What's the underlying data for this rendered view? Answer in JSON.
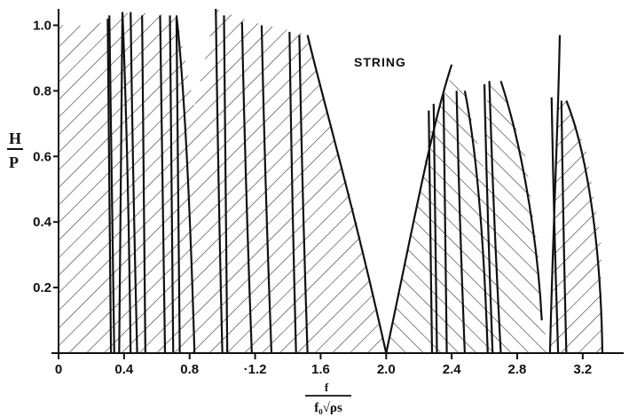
{
  "chart_data": {
    "type": "area",
    "title": "",
    "annotation": "STRING",
    "ylabel_num": "H",
    "ylabel_den": "P",
    "xlabel_num": "f",
    "xlabel_den": "f₀√ρs",
    "xlim": [
      0,
      3.45
    ],
    "ylim": [
      0,
      1.05
    ],
    "grid": false,
    "legend": "none",
    "x_ticks": [
      {
        "v": 0,
        "label": "0"
      },
      {
        "v": 0.4,
        "label": "0.4"
      },
      {
        "v": 0.8,
        "label": "0.8"
      },
      {
        "v": 1.2,
        "label": "·1.2"
      },
      {
        "v": 1.6,
        "label": "1.6"
      },
      {
        "v": 2.0,
        "label": "2.0"
      },
      {
        "v": 2.4,
        "label": "2.4"
      },
      {
        "v": 2.8,
        "label": "2.8"
      },
      {
        "v": 3.2,
        "label": "3.2"
      }
    ],
    "y_ticks": [
      {
        "v": 0.2,
        "label": "0.2"
      },
      {
        "v": 0.4,
        "label": "0.4"
      },
      {
        "v": 0.6,
        "label": "0.6"
      },
      {
        "v": 0.8,
        "label": "0.8"
      },
      {
        "v": 1.0,
        "label": "1.0"
      }
    ],
    "boundaries": [
      {
        "x0": 0.32,
        "x1": 0.3,
        "top": 1.02
      },
      {
        "x0": 0.34,
        "x1": 0.31,
        "top": 1.03
      },
      {
        "x0": 0.37,
        "x1": 0.39,
        "top": 1.04
      },
      {
        "x0": 0.48,
        "x1": 0.44,
        "top": 1.04
      },
      {
        "x0": 0.53,
        "x1": 0.51,
        "top": 1.03
      },
      {
        "x0": 0.65,
        "x1": 0.62,
        "top": 1.03
      },
      {
        "x0": 0.7,
        "x1": 0.68,
        "top": 1.03
      },
      {
        "x0": 0.74,
        "x1": 0.72,
        "top": 1.02
      },
      {
        "x0": 1.0,
        "x1": 0.96,
        "top": 1.05
      },
      {
        "x0": 1.03,
        "x1": 1.01,
        "top": 1.03
      },
      {
        "x0": 1.18,
        "x1": 1.12,
        "top": 1.01
      },
      {
        "x0": 1.3,
        "x1": 1.24,
        "top": 1.0
      },
      {
        "x0": 1.45,
        "x1": 1.41,
        "top": 0.98
      },
      {
        "x0": 1.52,
        "x1": 1.47,
        "top": 0.97
      },
      {
        "x0": 2.28,
        "x1": 2.26,
        "top": 0.74
      },
      {
        "x0": 2.31,
        "x1": 2.29,
        "top": 0.76
      },
      {
        "x0": 2.37,
        "x1": 2.35,
        "top": 0.79
      },
      {
        "x0": 2.48,
        "x1": 2.43,
        "top": 0.8
      },
      {
        "x0": 2.65,
        "x1": 2.6,
        "top": 0.82
      },
      {
        "x0": 2.7,
        "x1": 2.63,
        "top": 0.83
      },
      {
        "x0": 3.05,
        "x1": 3.01,
        "top": 0.78
      },
      {
        "x0": 3.1,
        "x1": 3.07,
        "top": 0.77
      }
    ],
    "outer_curves": [
      {
        "points": [
          [
            0.39,
            1.04
          ],
          [
            0.41,
            0.8
          ],
          [
            0.43,
            0.4
          ],
          [
            0.44,
            0.0
          ]
        ]
      },
      {
        "points": [
          [
            0.72,
            1.03
          ],
          [
            0.76,
            0.85
          ],
          [
            0.8,
            0.5
          ],
          [
            0.83,
            0.0
          ]
        ]
      },
      {
        "points": [
          [
            1.52,
            0.97
          ],
          [
            1.6,
            0.8
          ],
          [
            1.8,
            0.45
          ],
          [
            2.0,
            0.0
          ]
        ]
      },
      {
        "points": [
          [
            2.0,
            0.0
          ],
          [
            2.15,
            0.35
          ],
          [
            2.27,
            0.68
          ],
          [
            2.4,
            0.88
          ]
        ]
      },
      {
        "points": [
          [
            2.48,
            0.8
          ],
          [
            2.56,
            0.6
          ],
          [
            2.6,
            0.3
          ],
          [
            2.62,
            0.0
          ]
        ]
      },
      {
        "points": [
          [
            2.7,
            0.83
          ],
          [
            2.85,
            0.6
          ],
          [
            2.93,
            0.3
          ],
          [
            2.95,
            0.1
          ]
        ]
      },
      {
        "points": [
          [
            3.06,
            0.97
          ],
          [
            3.05,
            0.7
          ],
          [
            3.02,
            0.4
          ],
          [
            3.0,
            0.0
          ]
        ]
      },
      {
        "points": [
          [
            3.1,
            0.77
          ],
          [
            3.22,
            0.62
          ],
          [
            3.31,
            0.35
          ],
          [
            3.32,
            0.0
          ]
        ]
      }
    ],
    "hatched_regions": [
      {
        "upper": [
          [
            0.0,
            1.0
          ],
          [
            0.1,
            1.0
          ],
          [
            0.22,
            1.0
          ],
          [
            0.32,
            1.02
          ],
          [
            0.44,
            1.04
          ],
          [
            0.72,
            1.03
          ],
          [
            0.83,
            0.75
          ],
          [
            0.96,
            1.05
          ],
          [
            1.18,
            1.01
          ],
          [
            1.45,
            0.98
          ],
          [
            1.52,
            0.97
          ],
          [
            1.6,
            0.8
          ],
          [
            1.8,
            0.45
          ],
          [
            2.0,
            0.0
          ]
        ]
      },
      {
        "upper": [
          [
            2.0,
            0.0
          ],
          [
            2.15,
            0.35
          ],
          [
            2.27,
            0.68
          ],
          [
            2.4,
            0.85
          ],
          [
            2.48,
            0.8
          ],
          [
            2.6,
            0.55
          ],
          [
            2.62,
            0.82
          ],
          [
            2.7,
            0.83
          ],
          [
            2.85,
            0.6
          ],
          [
            2.93,
            0.3
          ],
          [
            2.95,
            0.1
          ],
          [
            3.0,
            0.0
          ]
        ]
      },
      {
        "upper": [
          [
            3.0,
            0.0
          ],
          [
            3.02,
            0.4
          ],
          [
            3.05,
            0.78
          ],
          [
            3.1,
            0.77
          ],
          [
            3.22,
            0.62
          ],
          [
            3.31,
            0.35
          ],
          [
            3.32,
            0.0
          ]
        ]
      }
    ]
  }
}
